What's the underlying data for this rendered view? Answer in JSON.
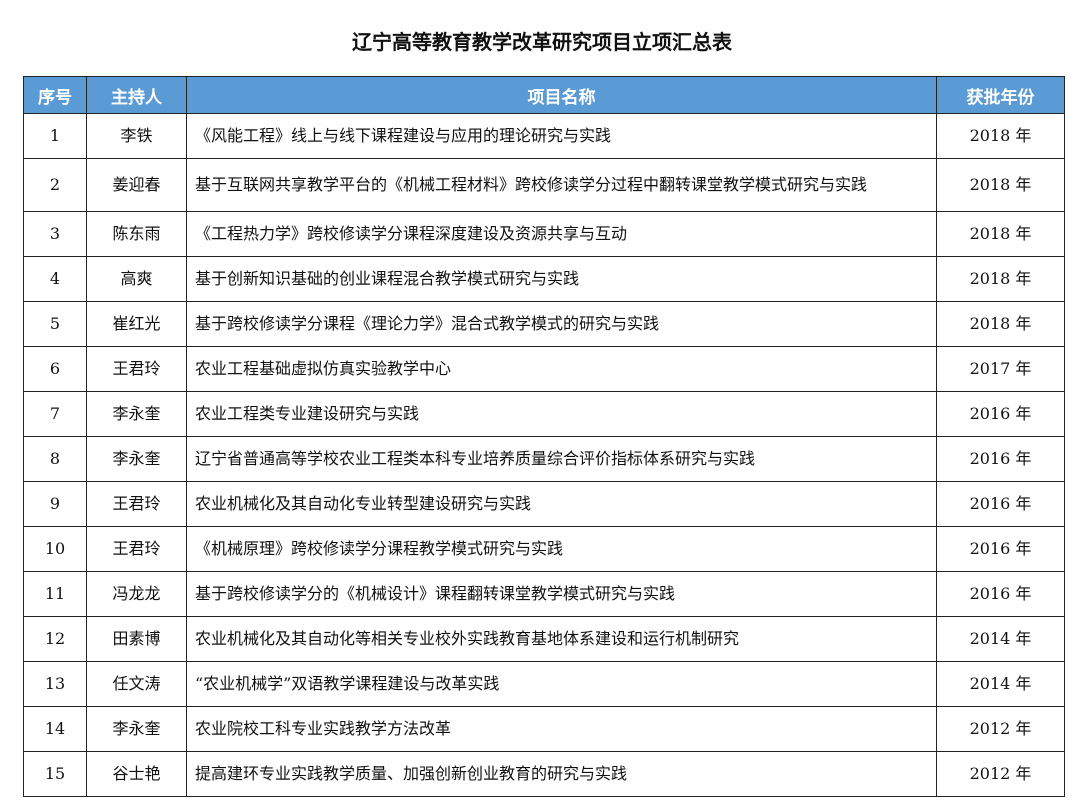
{
  "title": "辽宁高等教育教学改革研究项目立项汇总表",
  "colors": {
    "header_bg": "#5b9bd5",
    "header_text": "#ffffff"
  },
  "columns": [
    "序号",
    "主持人",
    "项目名称",
    "获批年份"
  ],
  "rows": [
    {
      "no": "1",
      "host": "李铁",
      "name": "《风能工程》线上与线下课程建设与应用的理论研究与实践",
      "year": "2018 年"
    },
    {
      "no": "2",
      "host": "姜迎春",
      "name": "基于互联网共享教学平台的《机械工程材料》跨校修读学分过程中翻转课堂教学模式研究与实践",
      "year": "2018 年"
    },
    {
      "no": "3",
      "host": "陈东雨",
      "name": "《工程热力学》跨校修读学分课程深度建设及资源共享与互动",
      "year": "2018 年"
    },
    {
      "no": "4",
      "host": "高爽",
      "name": "基于创新知识基础的创业课程混合教学模式研究与实践",
      "year": "2018 年"
    },
    {
      "no": "5",
      "host": "崔红光",
      "name": "基于跨校修读学分课程《理论力学》混合式教学模式的研究与实践",
      "year": "2018 年"
    },
    {
      "no": "6",
      "host": "王君玲",
      "name": "农业工程基础虚拟仿真实验教学中心",
      "year": "2017 年"
    },
    {
      "no": "7",
      "host": "李永奎",
      "name": "农业工程类专业建设研究与实践",
      "year": "2016 年"
    },
    {
      "no": "8",
      "host": "李永奎",
      "name": "辽宁省普通高等学校农业工程类本科专业培养质量综合评价指标体系研究与实践",
      "year": "2016 年"
    },
    {
      "no": "9",
      "host": "王君玲",
      "name": "农业机械化及其自动化专业转型建设研究与实践",
      "year": "2016 年"
    },
    {
      "no": "10",
      "host": "王君玲",
      "name": "《机械原理》跨校修读学分课程教学模式研究与实践",
      "year": "2016 年"
    },
    {
      "no": "11",
      "host": "冯龙龙",
      "name": "基于跨校修读学分的《机械设计》课程翻转课堂教学模式研究与实践",
      "year": "2016 年"
    },
    {
      "no": "12",
      "host": "田素博",
      "name": "农业机械化及其自动化等相关专业校外实践教育基地体系建设和运行机制研究",
      "year": "2014 年"
    },
    {
      "no": "13",
      "host": "任文涛",
      "name": "“农业机械学”双语教学课程建设与改革实践",
      "year": "2014 年"
    },
    {
      "no": "14",
      "host": "李永奎",
      "name": "农业院校工科专业实践教学方法改革",
      "year": "2012 年"
    },
    {
      "no": "15",
      "host": "谷士艳",
      "name": "提高建环专业实践教学质量、加强创新创业教育的研究与实践",
      "year": "2012 年"
    }
  ]
}
